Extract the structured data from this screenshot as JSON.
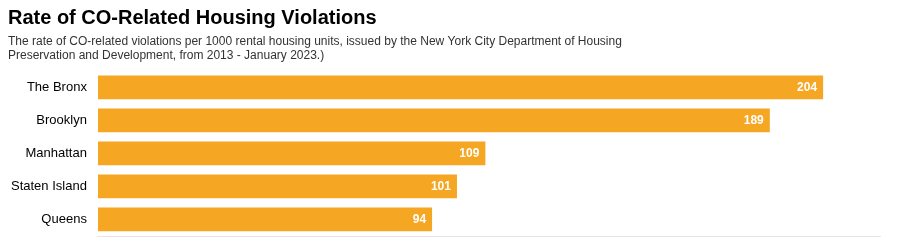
{
  "chart_data": {
    "type": "bar",
    "orientation": "horizontal",
    "title": "Rate of CO-Related Housing Violations",
    "subtitle": "The rate of CO-related violations per 1000 rental housing units, issued by the New York City Department of Housing\nPreservation and Development, from 2013 - January 2023.)",
    "categories": [
      "The Bronx",
      "Brooklyn",
      "Manhattan",
      "Staten Island",
      "Queens"
    ],
    "values": [
      204,
      189,
      109,
      101,
      94
    ],
    "color": "#F5A623",
    "xlim": [
      0,
      220
    ],
    "grid": false,
    "data_labels": true,
    "tick_labels": "y"
  }
}
